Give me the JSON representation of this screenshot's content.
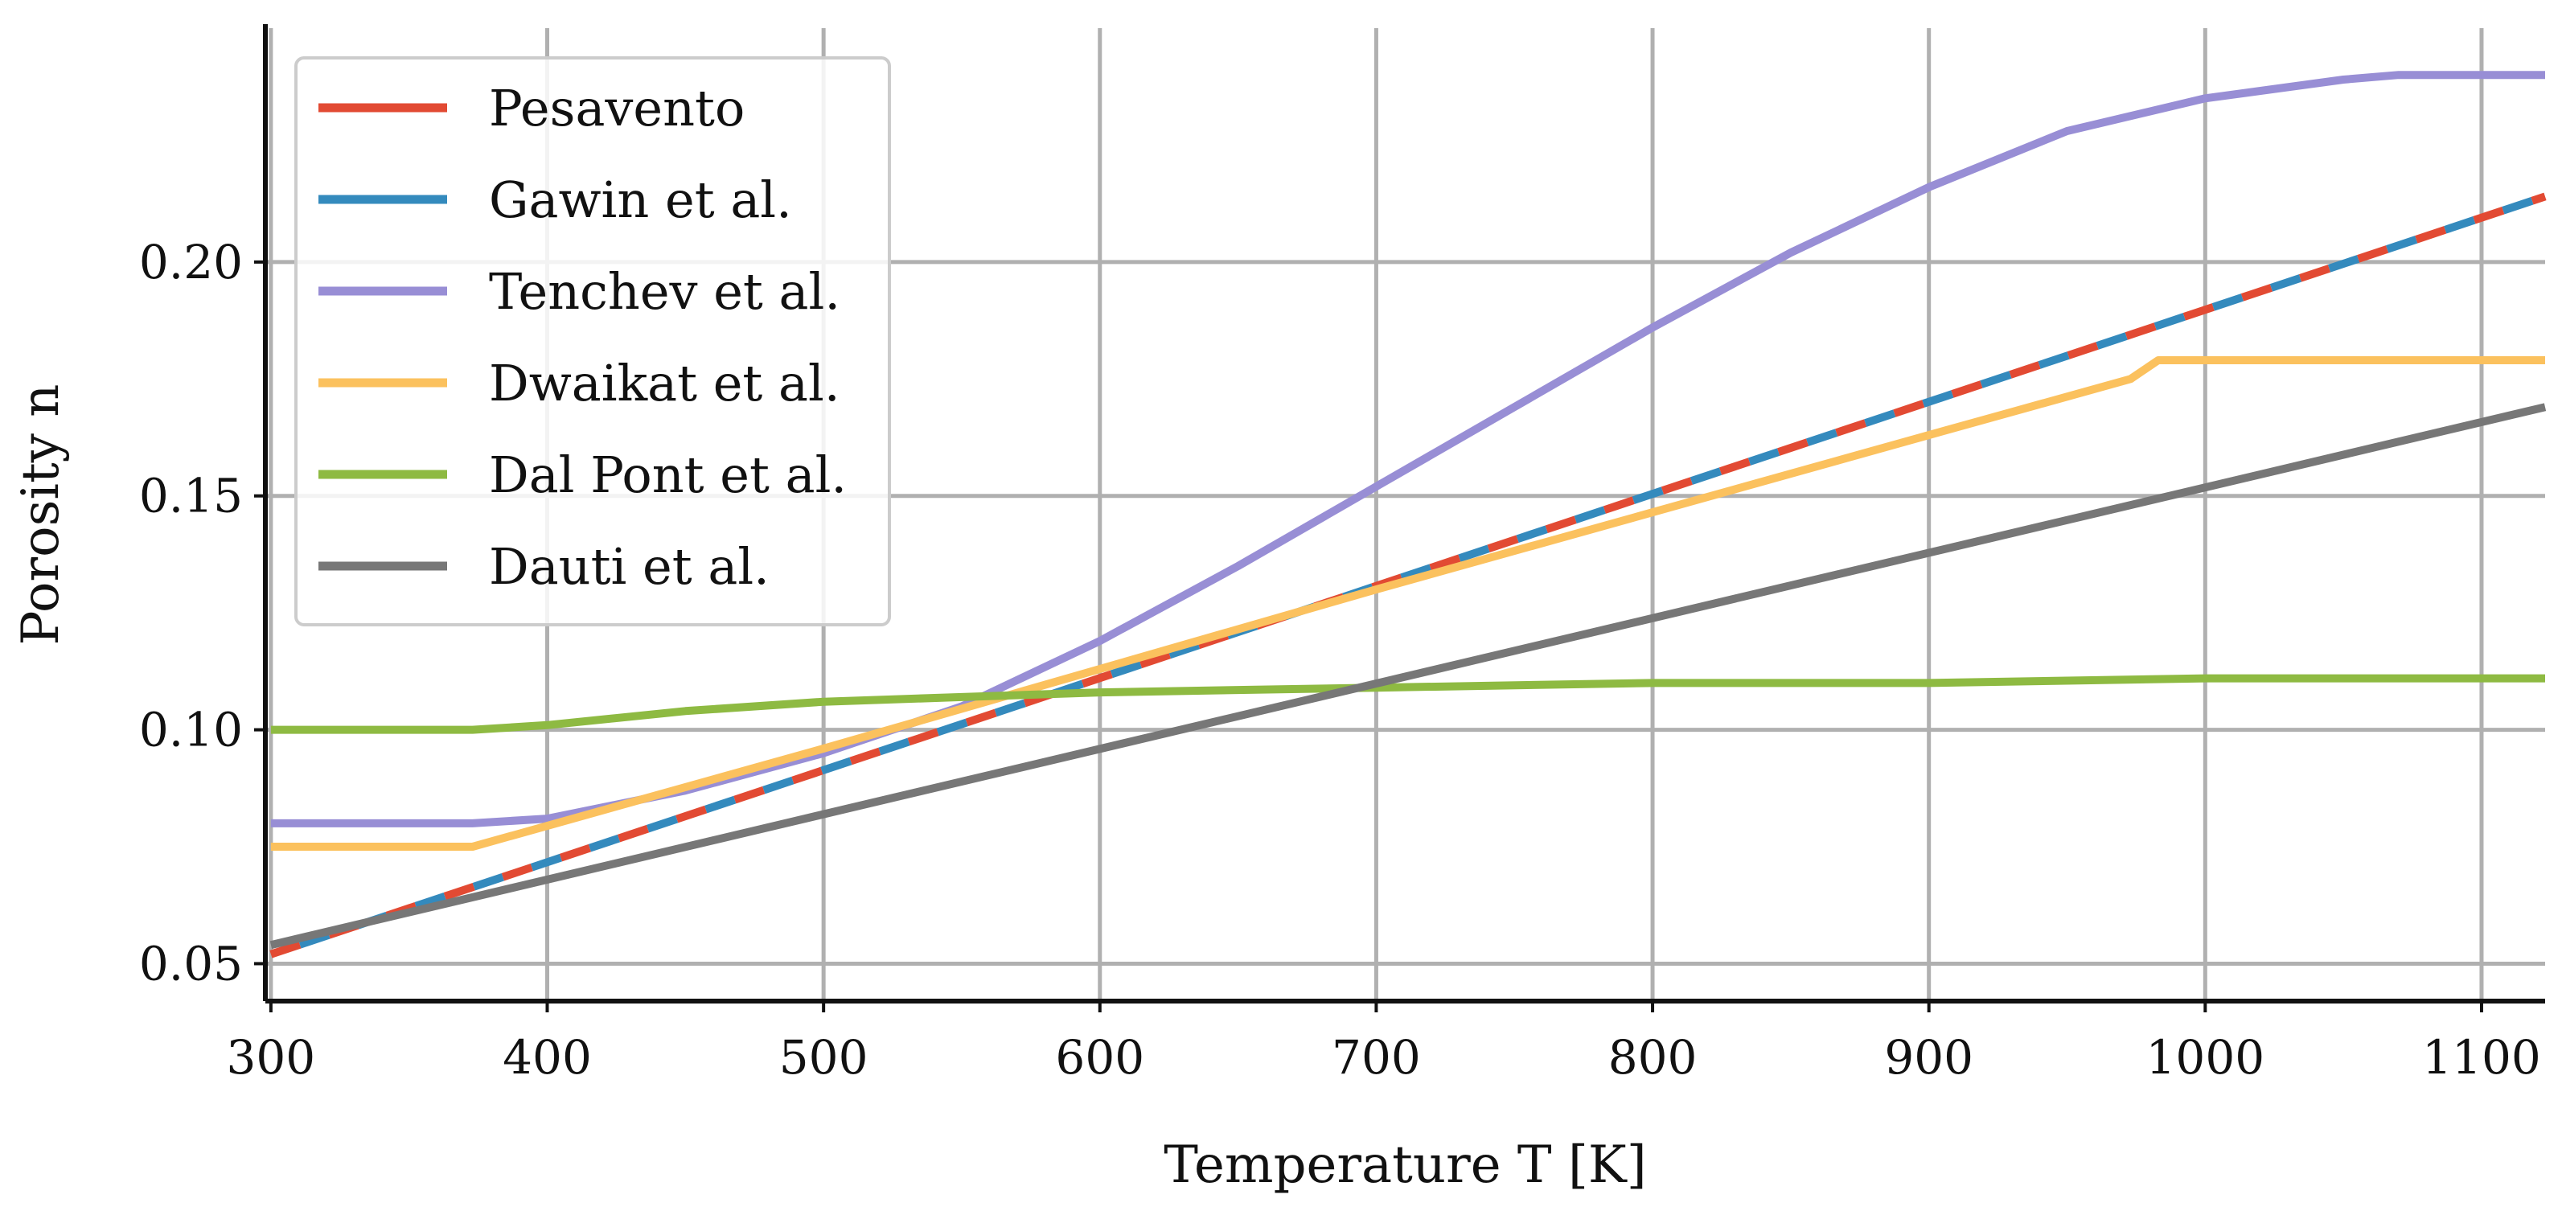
{
  "chart_data": {
    "type": "line",
    "title": "",
    "xlabel": "Temperature T [K]",
    "ylabel": "Porosity n",
    "xlim": [
      298,
      1123
    ],
    "ylim": [
      0.042,
      0.25
    ],
    "grid": true,
    "legend_position": "top-left",
    "x_ticks": [
      {
        "value": 300,
        "label": "300"
      },
      {
        "value": 400,
        "label": "400"
      },
      {
        "value": 500,
        "label": "500"
      },
      {
        "value": 600,
        "label": "600"
      },
      {
        "value": 700,
        "label": "700"
      },
      {
        "value": 800,
        "label": "800"
      },
      {
        "value": 900,
        "label": "900"
      },
      {
        "value": 1000,
        "label": "1000"
      },
      {
        "value": 1100,
        "label": "1100"
      }
    ],
    "y_ticks": [
      {
        "value": 0.05,
        "label": "0.05"
      },
      {
        "value": 0.1,
        "label": "0.10"
      },
      {
        "value": 0.15,
        "label": "0.15"
      },
      {
        "value": 0.2,
        "label": "0.20"
      }
    ],
    "series": [
      {
        "name": "Pesavento",
        "color": "#e24a33",
        "style": "dashed",
        "x": [
          300,
          1123
        ],
        "y": [
          0.052,
          0.214
        ]
      },
      {
        "name": "Gawin et al.",
        "color": "#348abd",
        "style": "solid",
        "x": [
          300,
          1123
        ],
        "y": [
          0.052,
          0.214
        ]
      },
      {
        "name": "Tenchev et al.",
        "color": "#988ed5",
        "style": "solid",
        "x": [
          300,
          373,
          400,
          450,
          500,
          550,
          600,
          650,
          700,
          750,
          800,
          850,
          900,
          950,
          1000,
          1050,
          1070,
          1123
        ],
        "y": [
          0.08,
          0.08,
          0.081,
          0.087,
          0.095,
          0.105,
          0.119,
          0.135,
          0.152,
          0.169,
          0.186,
          0.202,
          0.216,
          0.228,
          0.235,
          0.239,
          0.24,
          0.24
        ]
      },
      {
        "name": "Dwaikat et al.",
        "color": "#fbc15e",
        "style": "solid",
        "x": [
          300,
          373,
          500,
          700,
          900,
          973,
          983,
          1123
        ],
        "y": [
          0.075,
          0.075,
          0.096,
          0.13,
          0.163,
          0.175,
          0.179,
          0.179
        ]
      },
      {
        "name": "Dal Pont et al.",
        "color": "#8eba42",
        "style": "solid",
        "x": [
          300,
          373,
          400,
          450,
          500,
          550,
          600,
          700,
          800,
          900,
          1000,
          1123
        ],
        "y": [
          0.1,
          0.1,
          0.101,
          0.104,
          0.106,
          0.107,
          0.108,
          0.109,
          0.11,
          0.11,
          0.111,
          0.111
        ]
      },
      {
        "name": "Dauti et al.",
        "color": "#777777",
        "style": "solid",
        "x": [
          300,
          1123
        ],
        "y": [
          0.054,
          0.169
        ]
      }
    ]
  }
}
